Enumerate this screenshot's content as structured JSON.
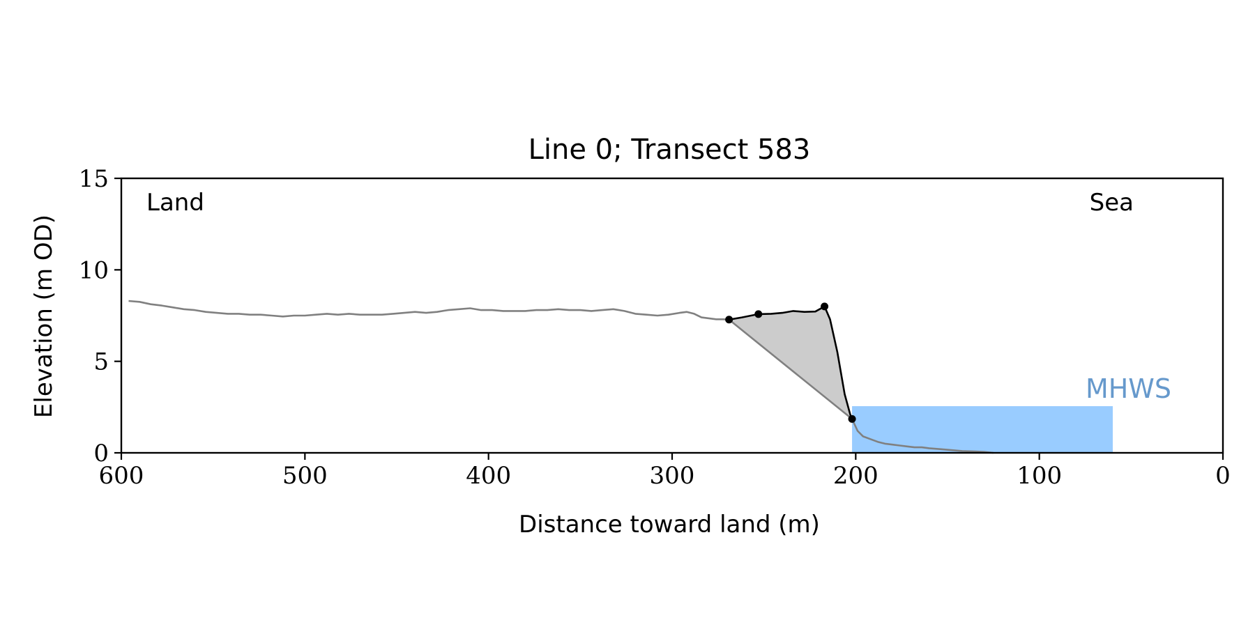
{
  "chart_data": {
    "type": "line",
    "title": "Line 0; Transect 583",
    "xlabel": "Distance toward land (m)",
    "ylabel": "Elevation (m OD)",
    "xlim": [
      600,
      0
    ],
    "ylim": [
      0,
      15
    ],
    "xticks": [
      600,
      500,
      400,
      300,
      200,
      100,
      0
    ],
    "yticks": [
      0,
      5,
      10,
      15
    ],
    "grid": false,
    "annotations": {
      "land": "Land",
      "sea": "Sea",
      "mhws": "MHWS"
    },
    "mhws": {
      "level": 2.55,
      "x_from": 202,
      "x_to": 60,
      "color": "#99ccff",
      "label_color": "#6699cc"
    },
    "colors": {
      "profile": "#808080",
      "cliff": "#000000",
      "fill": "#cccccc"
    },
    "profile": {
      "x": [
        596,
        590,
        584,
        578,
        572,
        566,
        560,
        554,
        548,
        542,
        536,
        530,
        524,
        518,
        512,
        506,
        500,
        494,
        488,
        482,
        476,
        470,
        464,
        458,
        452,
        446,
        440,
        434,
        428,
        422,
        416,
        410,
        404,
        398,
        392,
        386,
        380,
        374,
        368,
        362,
        356,
        350,
        344,
        338,
        332,
        326,
        320,
        314,
        308,
        302,
        296,
        292,
        288,
        284,
        280,
        276,
        272,
        269,
        202,
        199,
        196,
        192,
        188,
        184,
        180,
        176,
        172,
        168,
        164,
        160,
        154,
        148,
        142,
        136,
        130,
        125
      ],
      "y": [
        8.3,
        8.25,
        8.12,
        8.05,
        7.95,
        7.85,
        7.8,
        7.7,
        7.65,
        7.6,
        7.6,
        7.55,
        7.55,
        7.5,
        7.45,
        7.5,
        7.5,
        7.55,
        7.6,
        7.55,
        7.6,
        7.55,
        7.55,
        7.55,
        7.6,
        7.65,
        7.7,
        7.65,
        7.7,
        7.8,
        7.85,
        7.9,
        7.8,
        7.8,
        7.75,
        7.75,
        7.75,
        7.8,
        7.8,
        7.85,
        7.8,
        7.8,
        7.75,
        7.8,
        7.85,
        7.75,
        7.6,
        7.55,
        7.5,
        7.55,
        7.65,
        7.7,
        7.6,
        7.4,
        7.35,
        7.3,
        7.3,
        7.28,
        1.85,
        1.2,
        0.9,
        0.75,
        0.6,
        0.5,
        0.45,
        0.4,
        0.35,
        0.3,
        0.3,
        0.25,
        0.2,
        0.15,
        0.1,
        0.08,
        0.05,
        0.0
      ]
    },
    "cliff": {
      "x": [
        269,
        262,
        253,
        246,
        240,
        234,
        228,
        222,
        217,
        214,
        210,
        206,
        203,
        202
      ],
      "y": [
        7.28,
        7.4,
        7.58,
        7.6,
        7.65,
        7.75,
        7.7,
        7.72,
        8.0,
        7.3,
        5.5,
        3.2,
        2.1,
        1.85
      ]
    },
    "markers": {
      "x": [
        269,
        253,
        217,
        202
      ],
      "y": [
        7.28,
        7.58,
        8.0,
        1.85
      ]
    }
  }
}
